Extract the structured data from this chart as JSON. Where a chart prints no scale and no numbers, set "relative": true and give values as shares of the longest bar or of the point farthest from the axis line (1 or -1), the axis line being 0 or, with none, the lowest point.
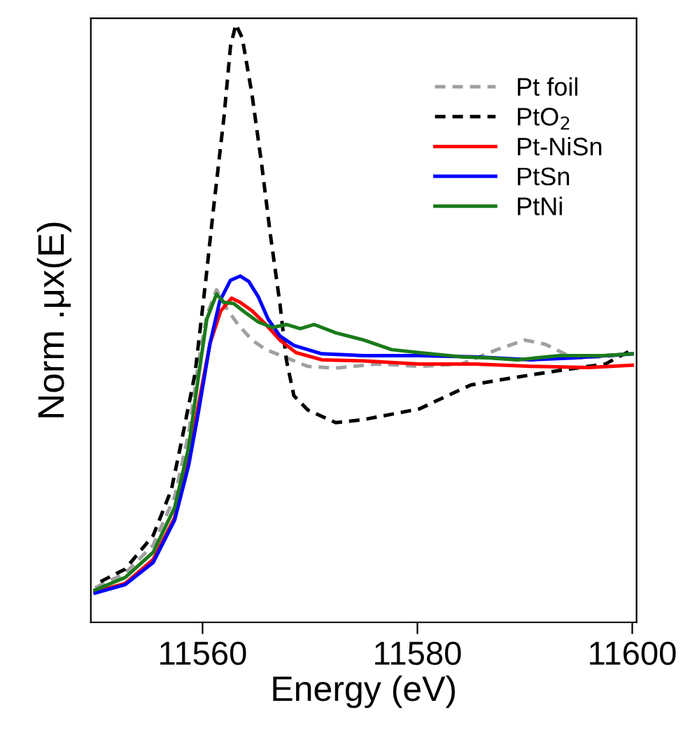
{
  "chart_data": {
    "type": "line",
    "relative": true,
    "xlabel": "Energy (eV)",
    "ylabel": "Norm .μx(E)",
    "xlim": [
      11549.6,
      11600.4
    ],
    "xticks": [
      11560,
      11580,
      11600
    ],
    "tick_labels": "x",
    "legend": "top right",
    "grid": false,
    "marker": "none",
    "series": [
      {
        "name": "Pt foil",
        "color": "#a0a0a0",
        "line_style": "dashed",
        "x": [
          11550.0,
          11552.8,
          11555.4,
          11557.4,
          11558.7,
          11559.6,
          11560.4,
          11561.3,
          11562.2,
          11563.3,
          11564.6,
          11565.9,
          11567.6,
          11569.8,
          11572.4,
          11576.3,
          11580.2,
          11584.1,
          11587.4,
          11590.0,
          11591.9,
          11594.5,
          11597.2,
          11600.0
        ],
        "values": [
          0.058,
          0.082,
          0.129,
          0.21,
          0.315,
          0.432,
          0.514,
          0.556,
          0.526,
          0.498,
          0.472,
          0.456,
          0.444,
          0.428,
          0.425,
          0.432,
          0.428,
          0.432,
          0.456,
          0.472,
          0.465,
          0.442,
          0.444,
          0.449
        ]
      },
      {
        "name": "PtO$_{2}$",
        "color": "#000000",
        "line_style": "dashed",
        "x": [
          11550.5,
          11552.8,
          11555.4,
          11557.1,
          11558.0,
          11559.3,
          11560.3,
          11561.0,
          11562.0,
          11562.6,
          11563.1,
          11563.7,
          11564.6,
          11565.5,
          11566.3,
          11567.2,
          11567.8,
          11568.5,
          11569.8,
          11572.4,
          11575.0,
          11580.2,
          11582.8,
          11585.0,
          11588.9,
          11593.2,
          11597.5,
          11600.0
        ],
        "values": [
          0.068,
          0.089,
          0.145,
          0.222,
          0.299,
          0.416,
          0.572,
          0.689,
          0.846,
          0.963,
          1.0,
          0.977,
          0.883,
          0.766,
          0.65,
          0.533,
          0.439,
          0.379,
          0.355,
          0.334,
          0.339,
          0.357,
          0.379,
          0.397,
          0.409,
          0.421,
          0.432,
          0.456
        ]
      },
      {
        "name": "Pt-NiSn",
        "color": "#ff0000",
        "line_style": "solid",
        "x": [
          11550.0,
          11552.8,
          11555.4,
          11557.4,
          11558.7,
          11559.6,
          11560.7,
          11561.7,
          11562.7,
          11563.5,
          11564.6,
          11565.9,
          11567.2,
          11568.7,
          11571.1,
          11575.0,
          11580.2,
          11585.4,
          11590.6,
          11595.9,
          11600.0
        ],
        "values": [
          0.051,
          0.065,
          0.105,
          0.175,
          0.269,
          0.362,
          0.467,
          0.521,
          0.542,
          0.535,
          0.521,
          0.498,
          0.472,
          0.451,
          0.439,
          0.437,
          0.432,
          0.432,
          0.428,
          0.426,
          0.43
        ]
      },
      {
        "name": "PtSn",
        "color": "#0000ff",
        "line_style": "solid",
        "x": [
          11550.0,
          11552.8,
          11555.4,
          11557.4,
          11558.7,
          11559.6,
          11560.7,
          11561.6,
          11562.6,
          11563.5,
          11564.3,
          11565.2,
          11566.1,
          11567.2,
          11568.5,
          11571.1,
          11575.0,
          11580.2,
          11585.4,
          11590.6,
          11594.5,
          11600.0
        ],
        "values": [
          0.049,
          0.063,
          0.1,
          0.171,
          0.262,
          0.35,
          0.467,
          0.537,
          0.572,
          0.579,
          0.57,
          0.544,
          0.507,
          0.479,
          0.463,
          0.449,
          0.446,
          0.446,
          0.444,
          0.439,
          0.442,
          0.449
        ]
      },
      {
        "name": "PtNi",
        "color": "#1a7a1a",
        "line_style": "solid",
        "x": [
          11550.0,
          11552.8,
          11555.4,
          11557.4,
          11558.7,
          11559.6,
          11560.4,
          11561.3,
          11562.0,
          11562.9,
          11563.9,
          11565.2,
          11566.5,
          11567.8,
          11569.1,
          11570.4,
          11572.4,
          11575.0,
          11577.6,
          11580.2,
          11584.1,
          11586.7,
          11589.3,
          11593.2,
          11597.2,
          11600.0
        ],
        "values": [
          0.054,
          0.075,
          0.117,
          0.192,
          0.292,
          0.409,
          0.507,
          0.549,
          0.535,
          0.533,
          0.519,
          0.502,
          0.493,
          0.498,
          0.491,
          0.498,
          0.484,
          0.472,
          0.456,
          0.451,
          0.444,
          0.442,
          0.439,
          0.446,
          0.446,
          0.449
        ]
      }
    ]
  }
}
